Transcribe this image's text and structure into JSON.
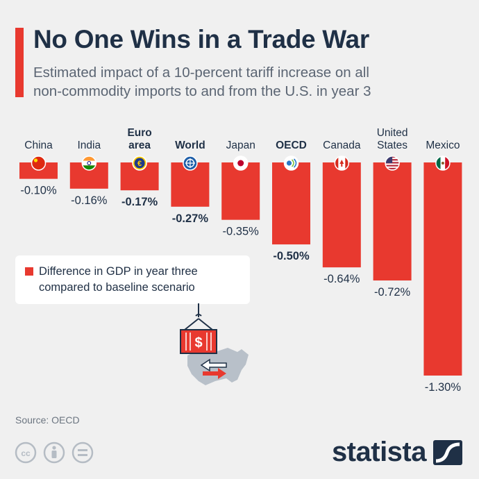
{
  "header": {
    "title": "No One Wins in a Trade War",
    "subtitle_line1": "Estimated impact of a 10-percent tariff increase on all",
    "subtitle_line2": "non-commodity imports to and from the U.S. in year 3"
  },
  "legend": {
    "line1": "Difference in GDP in year three",
    "line2": "compared to baseline scenario"
  },
  "footer": {
    "source": "Source: OECD",
    "brand": "statista"
  },
  "colors": {
    "bar": "#e8392f",
    "text": "#1f3046"
  },
  "chart_data": {
    "type": "bar",
    "title": "No One Wins in a Trade War",
    "ylabel": "Difference in GDP in year three compared to baseline scenario",
    "categories": [
      {
        "lines": [
          "China"
        ],
        "bold": false,
        "flag": "china-flag-icon"
      },
      {
        "lines": [
          "India"
        ],
        "bold": false,
        "flag": "india-flag-icon"
      },
      {
        "lines": [
          "Euro",
          "area"
        ],
        "bold": true,
        "flag": "euro-icon"
      },
      {
        "lines": [
          "World"
        ],
        "bold": true,
        "flag": "globe-icon"
      },
      {
        "lines": [
          "Japan"
        ],
        "bold": false,
        "flag": "japan-flag-icon"
      },
      {
        "lines": [
          "OECD"
        ],
        "bold": true,
        "flag": "oecd-logo-icon"
      },
      {
        "lines": [
          "Canada"
        ],
        "bold": false,
        "flag": "canada-flag-icon"
      },
      {
        "lines": [
          "United",
          "States"
        ],
        "bold": false,
        "flag": "usa-flag-icon"
      },
      {
        "lines": [
          "Mexico"
        ],
        "bold": false,
        "flag": "mexico-flag-icon"
      }
    ],
    "values": [
      -0.1,
      -0.16,
      -0.17,
      -0.27,
      -0.35,
      -0.5,
      -0.64,
      -0.72,
      -1.3
    ],
    "value_labels": [
      "-0.10%",
      "-0.16%",
      "-0.17%",
      "-0.27%",
      "-0.35%",
      "-0.50%",
      "-0.64%",
      "-0.72%",
      "-1.30%"
    ],
    "ylim": [
      -1.3,
      0
    ]
  }
}
